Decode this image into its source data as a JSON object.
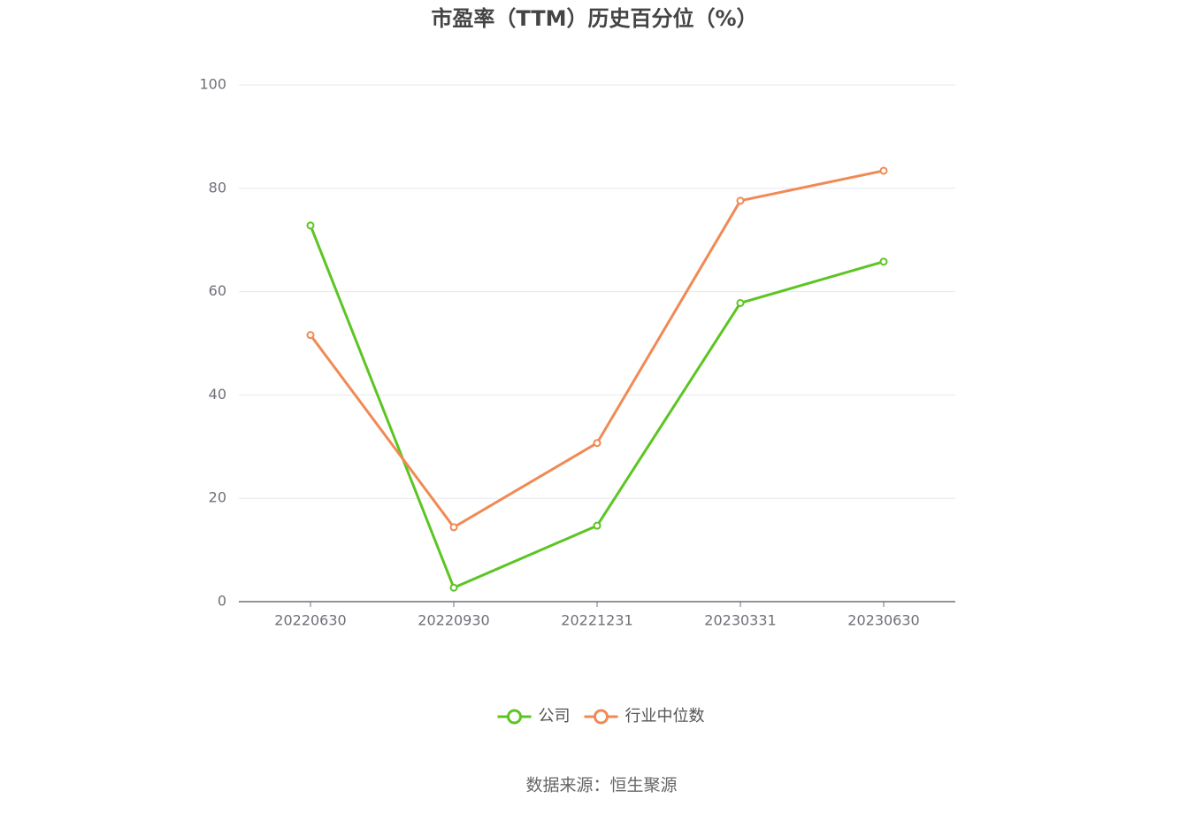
{
  "chart_data": {
    "type": "line",
    "title": "市盈率（TTM）历史百分位（%）",
    "categories": [
      "20220630",
      "20220930",
      "20221231",
      "20230331",
      "20230630"
    ],
    "series": [
      {
        "name": "公司",
        "color": "#5cc523",
        "values": [
          72.8,
          2.7,
          14.7,
          57.8,
          65.8
        ]
      },
      {
        "name": "行业中位数",
        "color": "#f08a54",
        "values": [
          51.6,
          14.4,
          30.7,
          77.6,
          83.4
        ]
      }
    ],
    "ylim": [
      0,
      100
    ],
    "yticks": [
      0,
      20,
      40,
      60,
      80,
      100
    ],
    "grid": true,
    "source": "数据来源：恒生聚源"
  }
}
